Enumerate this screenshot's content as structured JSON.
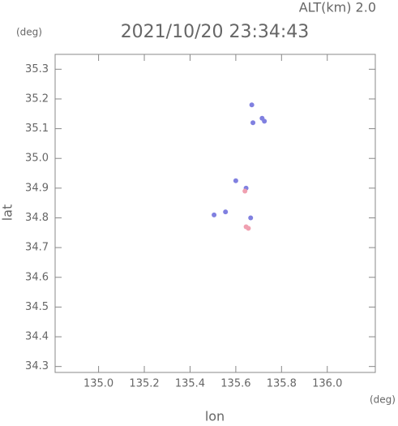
{
  "chart_data": {
    "type": "scatter",
    "title": "2021/10/20 23:34:43",
    "subtitle": "ALT(km) 2.0",
    "y_unit": "(deg)",
    "x_unit": "(deg)",
    "xlabel": "lon",
    "ylabel": "lat",
    "xlim": [
      134.81,
      136.21
    ],
    "ylim": [
      34.28,
      35.35
    ],
    "xticks": [
      {
        "value": 135,
        "label": "135.0"
      },
      135.2,
      135.4,
      135.6,
      135.8,
      {
        "value": 136,
        "label": "136.0"
      }
    ],
    "yticks": [
      34.3,
      34.4,
      34.5,
      34.6,
      34.7,
      34.8,
      34.9,
      {
        "value": 35,
        "label": "35.0"
      },
      35.1,
      35.2,
      35.3
    ],
    "series": [
      {
        "color": "#8080e0",
        "x": [
          135.67,
          135.715,
          135.725,
          135.675,
          135.6,
          135.645,
          135.505,
          135.555,
          135.665
        ],
        "values": [
          35.18,
          35.135,
          35.125,
          35.12,
          34.925,
          34.9,
          34.81,
          34.82,
          34.8
        ]
      },
      {
        "color": "#f0a0b0",
        "x": [
          135.64,
          135.645,
          135.655
        ],
        "values": [
          34.89,
          34.77,
          34.765
        ]
      }
    ]
  }
}
